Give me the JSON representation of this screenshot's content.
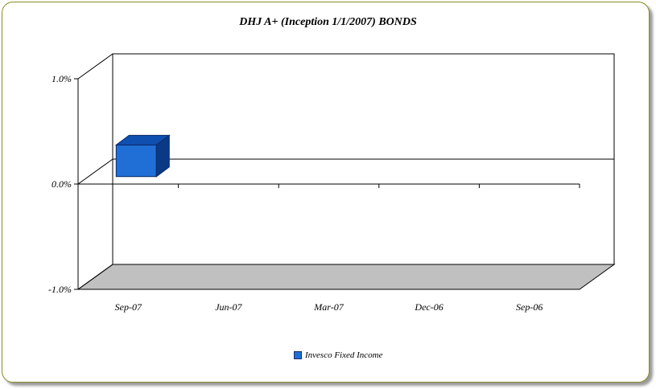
{
  "chart_data": {
    "type": "bar",
    "title": "DHJ A+ (Inception 1/1/2007) BONDS",
    "categories": [
      "Sep-07",
      "Jun-07",
      "Mar-07",
      "Dec-06",
      "Sep-06"
    ],
    "series": [
      {
        "name": "Invesco Fixed Income",
        "values": [
          0.3,
          null,
          null,
          null,
          null
        ],
        "color": "#1f6fd6"
      }
    ],
    "y_ticks": [
      "1.0%",
      "0.0%",
      "-1.0%"
    ],
    "ylim": [
      -1.0,
      1.0
    ],
    "three_d": true,
    "legend_position": "bottom",
    "grid": true
  }
}
